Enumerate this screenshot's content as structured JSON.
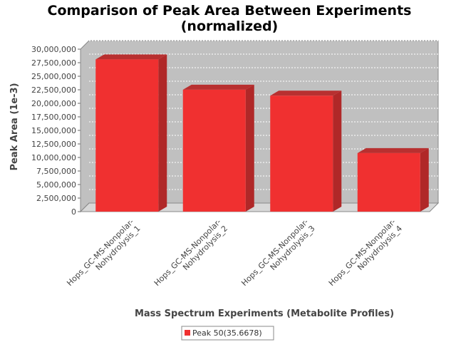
{
  "chart_data": {
    "type": "bar",
    "title": "Comparison of Peak Area Between Experiments",
    "subtitle": "(normalized)",
    "xlabel": "Mass Spectrum Experiments (Metabolite Profiles)",
    "ylabel": "Peak Area (1e-3)",
    "categories": [
      [
        "Hops_GC-MS-Nonpolar-",
        "Nohydrolysis_1"
      ],
      [
        "Hops_GC-MS-Nonpolar-",
        "Nohydrolysis_2"
      ],
      [
        "Hops_GC-MS-Nonpolar-",
        "Nohydrolysis_3"
      ],
      [
        "Hops_GC-MS-Nonpolar-",
        "Nohydrolysis_4"
      ]
    ],
    "series": [
      {
        "name": "Peak 50(35.6678)",
        "values": [
          28900000,
          23300000,
          22200000,
          11600000
        ],
        "color": "#f03030",
        "side_color": "#b02828",
        "top_color": "#b83030"
      }
    ],
    "ylim": [
      0,
      30000000
    ],
    "yticks": [
      {
        "v": 0,
        "label": "0"
      },
      {
        "v": 2500000,
        "label": "2,500,000"
      },
      {
        "v": 5000000,
        "label": "5,000,000"
      },
      {
        "v": 7500000,
        "label": "7,500,000"
      },
      {
        "v": 10000000,
        "label": "10,000,000"
      },
      {
        "v": 12500000,
        "label": "12,500,000"
      },
      {
        "v": 15000000,
        "label": "15,000,000"
      },
      {
        "v": 17500000,
        "label": "17,500,000"
      },
      {
        "v": 20000000,
        "label": "20,000,000"
      },
      {
        "v": 22500000,
        "label": "22,500,000"
      },
      {
        "v": 25000000,
        "label": "25,000,000"
      },
      {
        "v": 27500000,
        "label": "27,500,000"
      },
      {
        "v": 30000000,
        "label": "30,000,000"
      }
    ],
    "grid": true,
    "legend_position": "bottom-center",
    "plot_background": "#c0c0c0"
  }
}
